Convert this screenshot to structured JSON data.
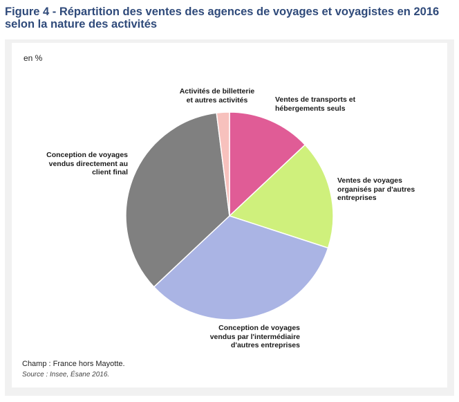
{
  "figure": {
    "title": "Figure 4 - Répartition des ventes des agences de voyages et voyagistes en 2016 selon la nature des activités",
    "unit": "en %",
    "note": "Champ : France hors Mayotte.",
    "source": "Source : Insee, Ésane 2016."
  },
  "chart_data": {
    "type": "pie",
    "title": "Figure 4 - Répartition des ventes des agences de voyages et voyagistes en 2016 selon la nature des activités",
    "unit": "en %",
    "start_angle_deg": 0,
    "direction": "clockwise",
    "slices": [
      {
        "label": "Ventes de transports et hébergements seuls",
        "value": 13,
        "color": "#e05c96"
      },
      {
        "label": "Ventes de voyages organisés par d'autres entreprises",
        "value": 17,
        "color": "#cff07c"
      },
      {
        "label": "Conception de voyages vendus par l'intermédiaire d'autres entreprises",
        "value": 33,
        "color": "#aab4e4"
      },
      {
        "label": "Conception de voyages vendus directement au client final",
        "value": 35,
        "color": "#808080"
      },
      {
        "label": "Activités de billetterie et autres activités",
        "value": 2,
        "color": "#f7c1bd"
      }
    ]
  }
}
